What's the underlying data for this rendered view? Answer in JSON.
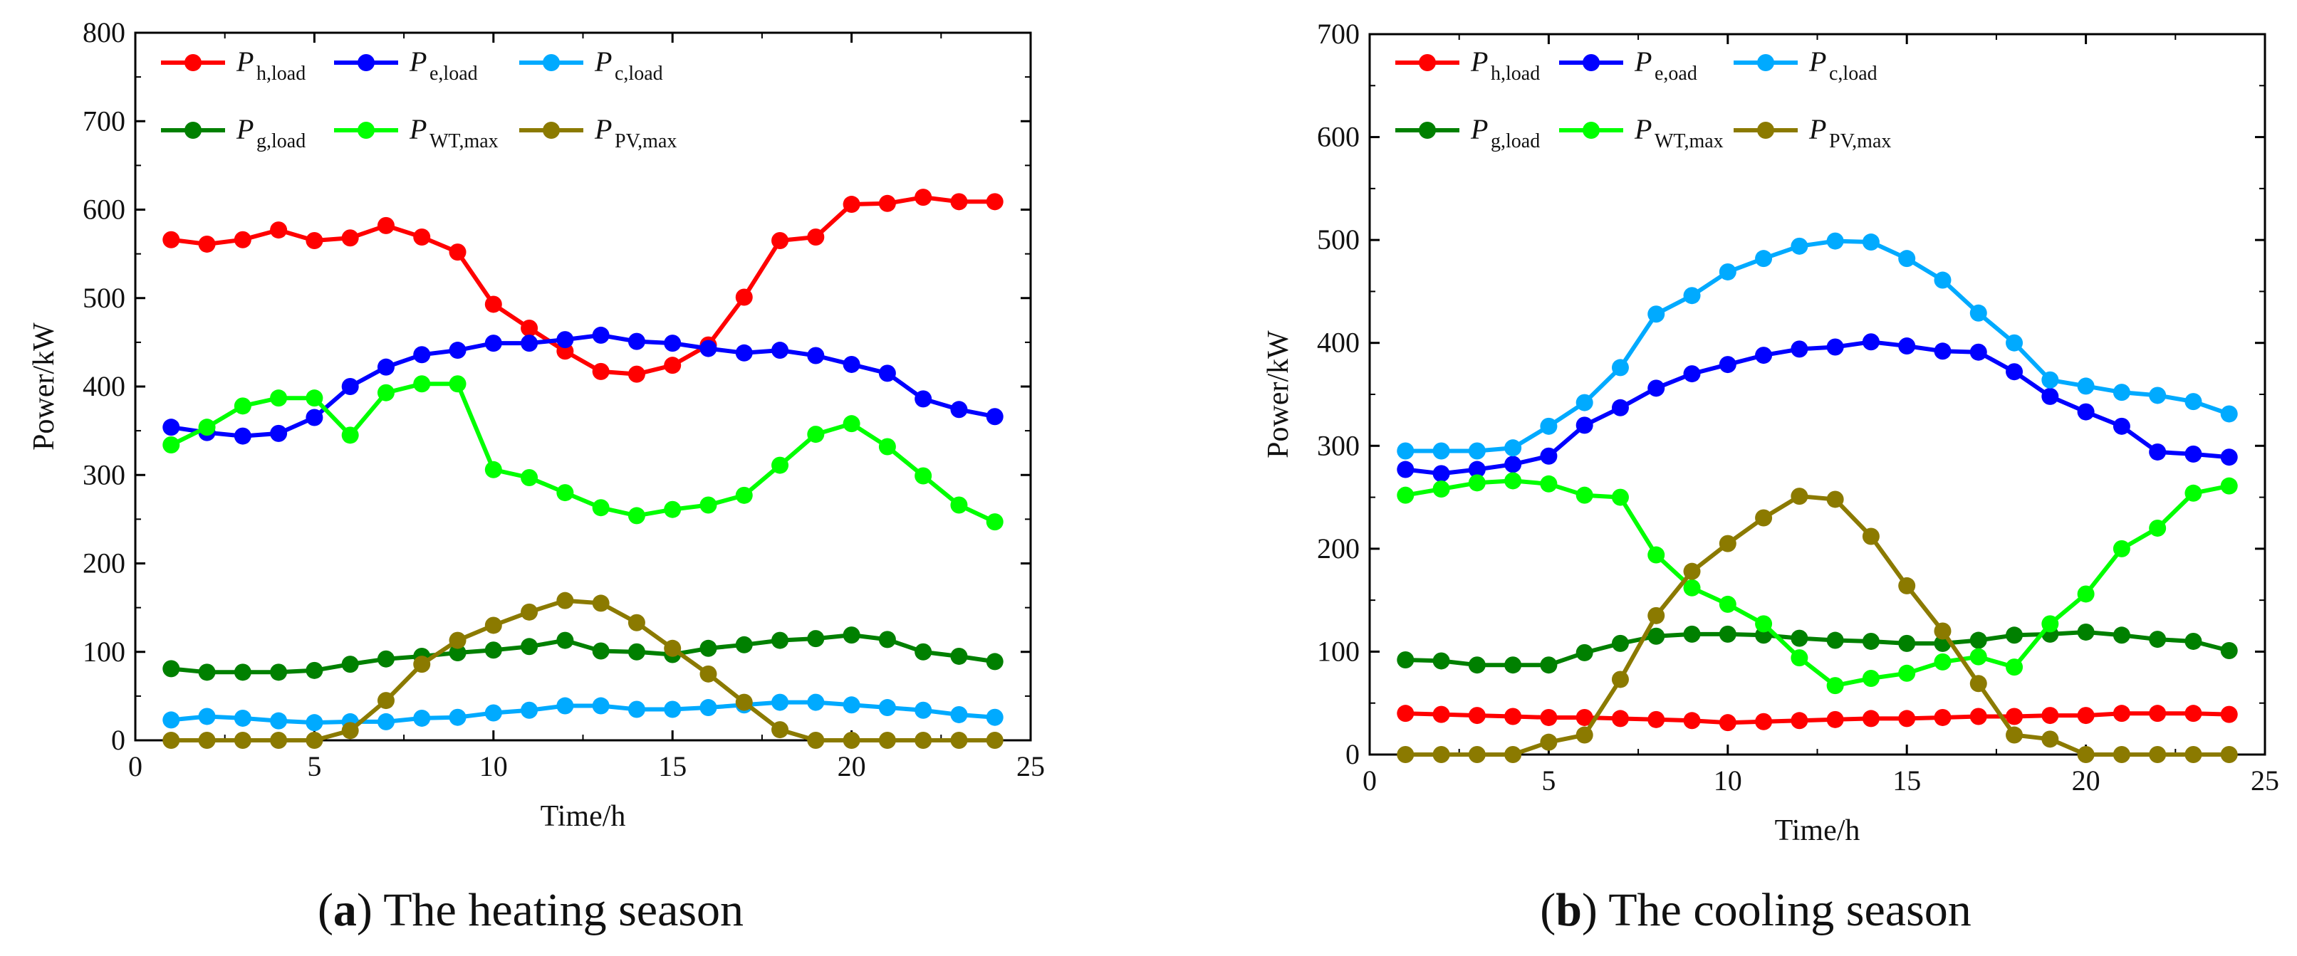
{
  "colors": {
    "red": "#ff0000",
    "blue": "#0000ff",
    "sky": "#00aaff",
    "darkgreen": "#008000",
    "green": "#00ff00",
    "olive": "#8b7a00"
  },
  "chart_data": [
    {
      "type": "line",
      "title": "",
      "caption": {
        "letter": "a",
        "text": "The heating season"
      },
      "xlabel": "Time/h",
      "ylabel": "Power/kW",
      "xlim": [
        0,
        25
      ],
      "ylim": [
        0,
        800
      ],
      "xticks": [
        "0",
        "5",
        "10",
        "15",
        "20",
        "25"
      ],
      "yticks": [
        "0",
        "100",
        "200",
        "300",
        "400",
        "500",
        "600",
        "700",
        "800"
      ],
      "legend_position": "top-left",
      "x": [
        1,
        2,
        3,
        4,
        5,
        6,
        7,
        8,
        9,
        10,
        11,
        12,
        13,
        14,
        15,
        16,
        17,
        18,
        19,
        20,
        21,
        22,
        23,
        24
      ],
      "series": [
        {
          "name": "P",
          "sub": "h,load",
          "color": "red",
          "values": [
            566,
            561,
            566,
            577,
            565,
            568,
            582,
            569,
            552,
            493,
            466,
            440,
            417,
            414,
            424,
            447,
            501,
            565,
            569,
            606,
            607,
            614,
            609,
            609
          ]
        },
        {
          "name": "P",
          "sub": "e,load",
          "color": "blue",
          "values": [
            354,
            348,
            344,
            347,
            365,
            400,
            422,
            436,
            441,
            449,
            449,
            453,
            458,
            451,
            449,
            443,
            438,
            441,
            435,
            425,
            415,
            386,
            374,
            366
          ]
        },
        {
          "name": "P",
          "sub": "c,load",
          "color": "sky",
          "values": [
            23,
            27,
            25,
            22,
            20,
            21,
            21,
            25,
            26,
            31,
            34,
            39,
            39,
            35,
            35,
            37,
            40,
            43,
            43,
            40,
            37,
            34,
            29,
            26
          ]
        },
        {
          "name": "P",
          "sub": "g,load",
          "color": "darkgreen",
          "values": [
            81,
            77,
            77,
            77,
            79,
            86,
            92,
            95,
            99,
            102,
            106,
            113,
            101,
            100,
            97,
            104,
            108,
            113,
            115,
            119,
            114,
            100,
            95,
            89
          ]
        },
        {
          "name": "P",
          "sub": "WT,max",
          "color": "green",
          "values": [
            334,
            354,
            378,
            387,
            387,
            345,
            393,
            403,
            403,
            306,
            297,
            280,
            263,
            254,
            261,
            266,
            277,
            311,
            346,
            358,
            332,
            299,
            266,
            247
          ]
        },
        {
          "name": "P",
          "sub": "PV,max",
          "color": "olive",
          "values": [
            0,
            0,
            0,
            0,
            0,
            11,
            45,
            86,
            113,
            130,
            145,
            158,
            155,
            133,
            104,
            75,
            43,
            12,
            0,
            0,
            0,
            0,
            0,
            0
          ]
        }
      ]
    },
    {
      "type": "line",
      "title": "",
      "caption": {
        "letter": "b",
        "text": "The cooling season"
      },
      "xlabel": "Time/h",
      "ylabel": "Power/kW",
      "xlim": [
        0,
        25
      ],
      "ylim": [
        0,
        700
      ],
      "xticks": [
        "0",
        "5",
        "10",
        "15",
        "20",
        "25"
      ],
      "yticks": [
        "0",
        "100",
        "200",
        "300",
        "400",
        "500",
        "600",
        "700"
      ],
      "legend_position": "top-left",
      "x": [
        1,
        2,
        3,
        4,
        5,
        6,
        7,
        8,
        9,
        10,
        11,
        12,
        13,
        14,
        15,
        16,
        17,
        18,
        19,
        20,
        21,
        22,
        23,
        24
      ],
      "series": [
        {
          "name": "P",
          "sub": "h,load",
          "color": "red",
          "values": [
            40,
            39,
            38,
            37,
            36,
            36,
            35,
            34,
            33,
            31,
            32,
            33,
            34,
            35,
            35,
            36,
            37,
            37,
            38,
            38,
            40,
            40,
            40,
            39
          ]
        },
        {
          "name": "P",
          "sub": "e,oad",
          "color": "blue",
          "values": [
            277,
            273,
            277,
            282,
            290,
            320,
            337,
            356,
            370,
            379,
            388,
            394,
            396,
            401,
            397,
            392,
            391,
            372,
            348,
            333,
            319,
            294,
            292,
            289
          ]
        },
        {
          "name": "P",
          "sub": "c,load",
          "color": "sky",
          "values": [
            295,
            295,
            295,
            298,
            319,
            342,
            376,
            428,
            446,
            469,
            482,
            494,
            499,
            498,
            482,
            461,
            429,
            400,
            364,
            358,
            352,
            349,
            343,
            331
          ]
        },
        {
          "name": "P",
          "sub": "g,load",
          "color": "darkgreen",
          "values": [
            92,
            91,
            87,
            87,
            87,
            99,
            108,
            115,
            117,
            117,
            116,
            113,
            111,
            110,
            108,
            108,
            111,
            116,
            117,
            119,
            116,
            112,
            110,
            101
          ]
        },
        {
          "name": "P",
          "sub": "WT,max",
          "color": "green",
          "values": [
            252,
            258,
            264,
            266,
            263,
            252,
            250,
            194,
            162,
            146,
            127,
            94,
            67,
            74,
            79,
            90,
            95,
            85,
            127,
            156,
            200,
            220,
            254,
            261
          ]
        },
        {
          "name": "P",
          "sub": "PV,max",
          "color": "olive",
          "values": [
            0,
            0,
            0,
            0,
            12,
            19,
            73,
            135,
            178,
            205,
            230,
            251,
            248,
            212,
            164,
            120,
            69,
            19,
            15,
            0,
            0,
            0,
            0,
            0
          ]
        }
      ]
    }
  ]
}
